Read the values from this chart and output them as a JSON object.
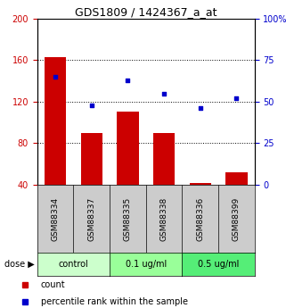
{
  "title": "GDS1809 / 1424367_a_at",
  "samples": [
    "GSM88334",
    "GSM88337",
    "GSM88335",
    "GSM88338",
    "GSM88336",
    "GSM88399"
  ],
  "bar_values": [
    163,
    90,
    110,
    90,
    42,
    52
  ],
  "percentile_values": [
    65,
    48,
    63,
    55,
    46,
    52
  ],
  "bar_color": "#cc0000",
  "dot_color": "#0000cc",
  "ylim_left": [
    40,
    200
  ],
  "ylim_right": [
    0,
    100
  ],
  "yticks_left": [
    40,
    80,
    120,
    160,
    200
  ],
  "yticks_right": [
    0,
    25,
    50,
    75,
    100
  ],
  "yticklabels_right": [
    "0",
    "25",
    "50",
    "75",
    "100%"
  ],
  "grid_values": [
    80,
    120,
    160
  ],
  "dose_groups": [
    {
      "label": "control",
      "indices": [
        0,
        1
      ],
      "color": "#ccffcc"
    },
    {
      "label": "0.1 ug/ml",
      "indices": [
        2,
        3
      ],
      "color": "#99ff99"
    },
    {
      "label": "0.5 ug/ml",
      "indices": [
        4,
        5
      ],
      "color": "#55ee77"
    }
  ],
  "dose_label": "dose",
  "legend_count": "count",
  "legend_percentile": "percentile rank within the sample",
  "sample_box_color": "#cccccc",
  "bar_bottom": 40,
  "bar_width": 0.6
}
